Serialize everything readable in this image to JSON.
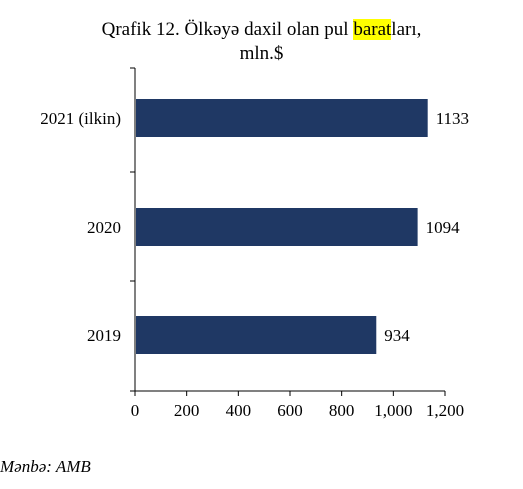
{
  "title": {
    "line1_before": "Qrafik 12. Ölkəyə daxil olan pul ",
    "line1_highlight": "barat",
    "line1_after": "ları,",
    "line2": "mln.$"
  },
  "source": "Mənbə: AMB",
  "chart_data": {
    "type": "bar",
    "orientation": "horizontal",
    "categories": [
      "2021 (ilkin)",
      "2020",
      "2019"
    ],
    "values": [
      1133,
      1094,
      934
    ],
    "value_labels": [
      "1133",
      "1094",
      "934"
    ],
    "xlim": [
      0,
      1200
    ],
    "x_ticks": [
      0,
      200,
      400,
      600,
      800,
      1000,
      1200
    ],
    "x_tick_labels": [
      "0",
      "200",
      "400",
      "600",
      "800",
      "1,000",
      "1,200"
    ],
    "bar_color": "#1f3864",
    "grid": false,
    "legend": "none"
  }
}
